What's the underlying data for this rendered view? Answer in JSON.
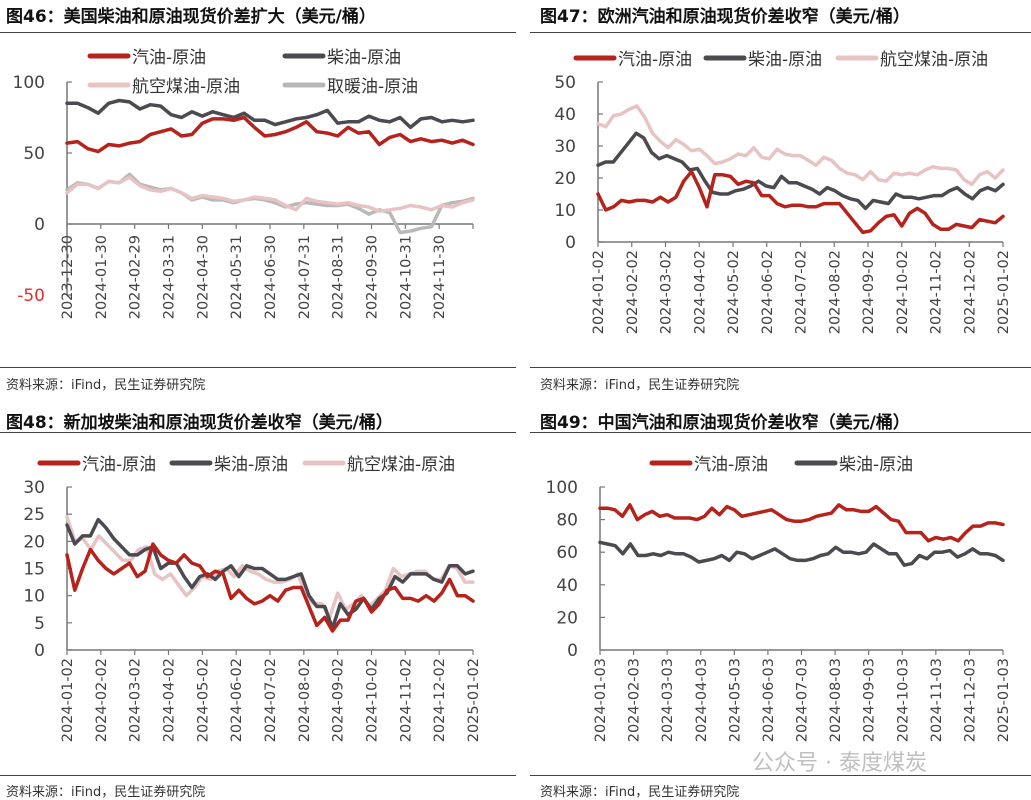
{
  "colors": {
    "gasoline": "#b5231c",
    "diesel": "#4a4a50",
    "jet": "#e8c3c3",
    "heating": "#b8b8b8",
    "negative_tick": "#e03030"
  },
  "figures": [
    {
      "title": "图46：美国柴油和原油现货价差扩大（美元/桶）",
      "source": "资料来源：iFind，民生证券研究院"
    },
    {
      "title": "图47：欧洲汽油和原油现货价差收窄（美元/桶）",
      "source": "资料来源：iFind，民生证券研究院"
    },
    {
      "title": "图48：新加坡柴油和原油现货价差收窄（美元/桶）",
      "source": "资料来源：iFind，民生证券研究院"
    },
    {
      "title": "图49：中国汽油和原油现货价差收窄（美元/桶）",
      "source": "资料来源：iFind，民生证券研究院"
    }
  ],
  "watermark": "公众号 · 泰度煤炭",
  "chart_data": [
    {
      "type": "line",
      "ylim": [
        -50,
        100
      ],
      "yticks": [
        100,
        50,
        0,
        -50
      ],
      "xticks": [
        "2023-12-30",
        "2024-01-30",
        "2024-02-29",
        "2024-03-31",
        "2024-04-30",
        "2024-05-31",
        "2024-06-30",
        "2024-07-31",
        "2024-08-31",
        "2024-09-30",
        "2024-10-31",
        "2024-11-30"
      ],
      "legend": "top",
      "grid": false,
      "series": [
        {
          "name": "汽油-原油",
          "color_key": "gasoline",
          "values": [
            57,
            58,
            53,
            51,
            56,
            55,
            57,
            58,
            63,
            65,
            67,
            62,
            63,
            71,
            74,
            74,
            73,
            75,
            68,
            62,
            63,
            65,
            68,
            72,
            65,
            64,
            62,
            68,
            64,
            65,
            56,
            61,
            63,
            58,
            60,
            58,
            59,
            57,
            59,
            56
          ]
        },
        {
          "name": "柴油-原油",
          "color_key": "diesel",
          "values": [
            85,
            85,
            82,
            78,
            85,
            87,
            86,
            81,
            84,
            83,
            77,
            75,
            79,
            76,
            79,
            77,
            75,
            78,
            73,
            73,
            70,
            72,
            74,
            75,
            77,
            80,
            71,
            72,
            72,
            76,
            73,
            72,
            75,
            68,
            74,
            75,
            72,
            73,
            72,
            73
          ]
        },
        {
          "name": "航空煤油-原油",
          "color_key": "jet",
          "values": [
            22,
            28,
            28,
            25,
            30,
            29,
            33,
            27,
            24,
            23,
            25,
            22,
            18,
            20,
            19,
            18,
            16,
            17,
            19,
            18,
            17,
            13,
            10,
            18,
            16,
            15,
            14,
            15,
            13,
            12,
            9,
            10,
            11,
            13,
            12,
            10,
            13,
            12,
            15,
            17
          ]
        },
        {
          "name": "取暖油-原油",
          "color_key": "heating",
          "values": [
            24,
            29,
            28,
            25,
            30,
            29,
            35,
            28,
            26,
            24,
            25,
            22,
            17,
            19,
            17,
            17,
            15,
            17,
            18,
            17,
            15,
            12,
            14,
            15,
            14,
            13,
            13,
            14,
            11,
            7,
            10,
            8,
            -6,
            -5,
            -3,
            -2,
            13,
            15,
            16,
            18
          ]
        }
      ]
    },
    {
      "type": "line",
      "ylim": [
        0,
        50
      ],
      "yticks": [
        50,
        40,
        30,
        20,
        10,
        0
      ],
      "xticks": [
        "2024-01-02",
        "2024-02-02",
        "2024-03-02",
        "2024-04-02",
        "2024-05-02",
        "2024-06-02",
        "2024-07-02",
        "2024-08-02",
        "2024-09-02",
        "2024-10-02",
        "2024-11-02",
        "2024-12-02",
        "2025-01-02"
      ],
      "legend": "top",
      "grid": false,
      "series": [
        {
          "name": "汽油-原油",
          "color_key": "gasoline",
          "values": [
            15,
            10,
            11,
            13,
            12.5,
            13,
            13,
            12.5,
            14,
            12.5,
            14,
            19,
            22,
            17,
            11,
            21,
            21,
            20.5,
            18,
            19,
            18.5,
            14.5,
            14.5,
            12,
            11,
            11.5,
            11.5,
            11,
            11,
            12,
            12,
            12,
            9,
            6,
            3,
            3.5,
            6,
            8,
            8.5,
            5,
            9,
            10.5,
            9,
            5.5,
            4,
            4,
            5.5,
            5,
            4.5,
            7,
            6.5,
            6,
            8
          ]
        },
        {
          "name": "柴油-原油",
          "color_key": "diesel",
          "values": [
            24,
            25,
            25,
            28,
            31,
            34,
            32.5,
            28,
            26,
            27,
            26,
            25,
            22.5,
            23,
            19,
            15.5,
            15,
            15,
            16,
            16.5,
            17.5,
            19,
            17.5,
            17,
            20.5,
            18.5,
            18.5,
            17.5,
            16.5,
            15,
            17,
            16,
            14.5,
            13.5,
            13,
            10.5,
            13,
            12.5,
            12,
            15,
            14,
            14,
            13.5,
            14,
            14.5,
            14.5,
            16,
            17,
            15,
            13.5,
            16,
            17,
            16,
            18
          ]
        },
        {
          "name": "航空煤油-原油",
          "color_key": "jet",
          "values": [
            37,
            36,
            39.5,
            40,
            41.5,
            42.5,
            39,
            34,
            31.5,
            29.5,
            32,
            30.5,
            28.5,
            29,
            27,
            24.5,
            25,
            26,
            27.5,
            27,
            29.5,
            26.5,
            26,
            29,
            27.5,
            27,
            27,
            25.5,
            24,
            26.5,
            25.5,
            23,
            21.5,
            21,
            19.5,
            22,
            19.5,
            19,
            21.5,
            21,
            21.5,
            21,
            22.5,
            23.5,
            23,
            23,
            22.5,
            19.5,
            18,
            21,
            22,
            20,
            22.5
          ]
        }
      ]
    },
    {
      "type": "line",
      "ylim": [
        0,
        30
      ],
      "yticks": [
        30,
        25,
        20,
        15,
        10,
        5,
        0
      ],
      "xticks": [
        "2024-01-02",
        "2024-02-02",
        "2024-03-02",
        "2024-04-02",
        "2024-05-02",
        "2024-06-02",
        "2024-07-02",
        "2024-08-02",
        "2024-09-02",
        "2024-10-02",
        "2024-11-02",
        "2024-12-02",
        "2025-01-02"
      ],
      "legend": "top",
      "grid": false,
      "series": [
        {
          "name": "汽油-原油",
          "color_key": "gasoline",
          "values": [
            17.5,
            11,
            15,
            18.5,
            16.5,
            15,
            14,
            15,
            16,
            13.5,
            14.5,
            19.5,
            17.5,
            16.5,
            16,
            17.5,
            16,
            15.5,
            13.5,
            14.5,
            14,
            9.5,
            11,
            9.5,
            8.5,
            9,
            10,
            9,
            11,
            11.5,
            11.5,
            8,
            4.5,
            6,
            3.5,
            5.5,
            5.5,
            9,
            9.5,
            7,
            8.5,
            11,
            11.5,
            9.5,
            9.5,
            9,
            10,
            9,
            10.5,
            13,
            10,
            10,
            9
          ]
        },
        {
          "name": "柴油-原油",
          "color_key": "diesel",
          "values": [
            23,
            19.5,
            21,
            21,
            24,
            22.5,
            20.5,
            19,
            17.5,
            17.5,
            18.5,
            19,
            15,
            16,
            16,
            13.5,
            11.5,
            13.5,
            14,
            13,
            14.5,
            15.5,
            13.5,
            15.5,
            15,
            15,
            14,
            13,
            13,
            13.5,
            14,
            10,
            8,
            8,
            4,
            8.5,
            6.5,
            7.5,
            9.5,
            7.5,
            9.5,
            10.5,
            13.5,
            12.5,
            14,
            14,
            14,
            13,
            12.5,
            15.5,
            15.5,
            14,
            14.5
          ]
        },
        {
          "name": "航空煤油-原油",
          "color_key": "jet",
          "values": [
            24.5,
            20,
            20.5,
            18.5,
            21,
            19.5,
            18,
            16.5,
            16.5,
            18.5,
            19,
            14,
            13,
            14,
            12,
            10,
            11.5,
            13.5,
            13,
            14.5,
            15,
            13.5,
            15.5,
            14.5,
            14,
            13,
            12.5,
            12.5,
            13,
            14,
            10,
            8.5,
            8.5,
            6,
            10.5,
            7.5,
            8.5,
            10,
            8,
            9.5,
            11,
            15,
            13.5,
            14,
            14.5,
            14.5,
            13,
            13,
            15.5,
            15,
            12.5,
            12.5
          ]
        }
      ]
    },
    {
      "type": "line",
      "ylim": [
        0,
        100
      ],
      "yticks": [
        100,
        80,
        60,
        40,
        20,
        0
      ],
      "xticks": [
        "2024-01-03",
        "2024-02-03",
        "2024-03-03",
        "2024-04-03",
        "2024-05-03",
        "2024-06-03",
        "2024-07-03",
        "2024-08-03",
        "2024-09-03",
        "2024-10-03",
        "2024-11-03",
        "2024-12-03",
        "2025-01-03"
      ],
      "legend": "top",
      "grid": false,
      "series": [
        {
          "name": "汽油-原油",
          "color_key": "gasoline",
          "values": [
            87,
            87,
            86,
            82,
            89,
            80,
            83,
            85,
            82,
            83,
            81,
            81,
            81,
            80,
            82,
            87,
            83,
            88,
            86,
            82,
            83,
            84,
            85,
            86,
            83,
            80,
            79,
            79,
            80,
            82,
            83,
            84,
            89,
            86,
            86,
            85,
            85,
            88,
            84,
            80,
            79,
            72,
            72,
            72,
            67,
            69,
            68,
            69,
            67,
            72,
            76,
            76,
            78,
            78,
            77
          ]
        },
        {
          "name": "柴油-原油",
          "color_key": "diesel",
          "values": [
            66,
            65,
            64,
            59,
            65,
            58,
            58,
            59,
            58,
            60,
            59,
            59,
            57,
            54,
            55,
            56,
            58,
            55,
            60,
            59,
            56,
            58,
            60,
            62,
            59,
            56,
            55,
            55,
            56,
            58,
            59,
            63,
            60,
            60,
            59,
            60,
            65,
            62,
            59,
            59,
            52,
            53,
            58,
            56,
            60,
            60,
            61,
            57,
            59,
            62,
            59,
            59,
            58,
            55
          ]
        }
      ]
    }
  ]
}
